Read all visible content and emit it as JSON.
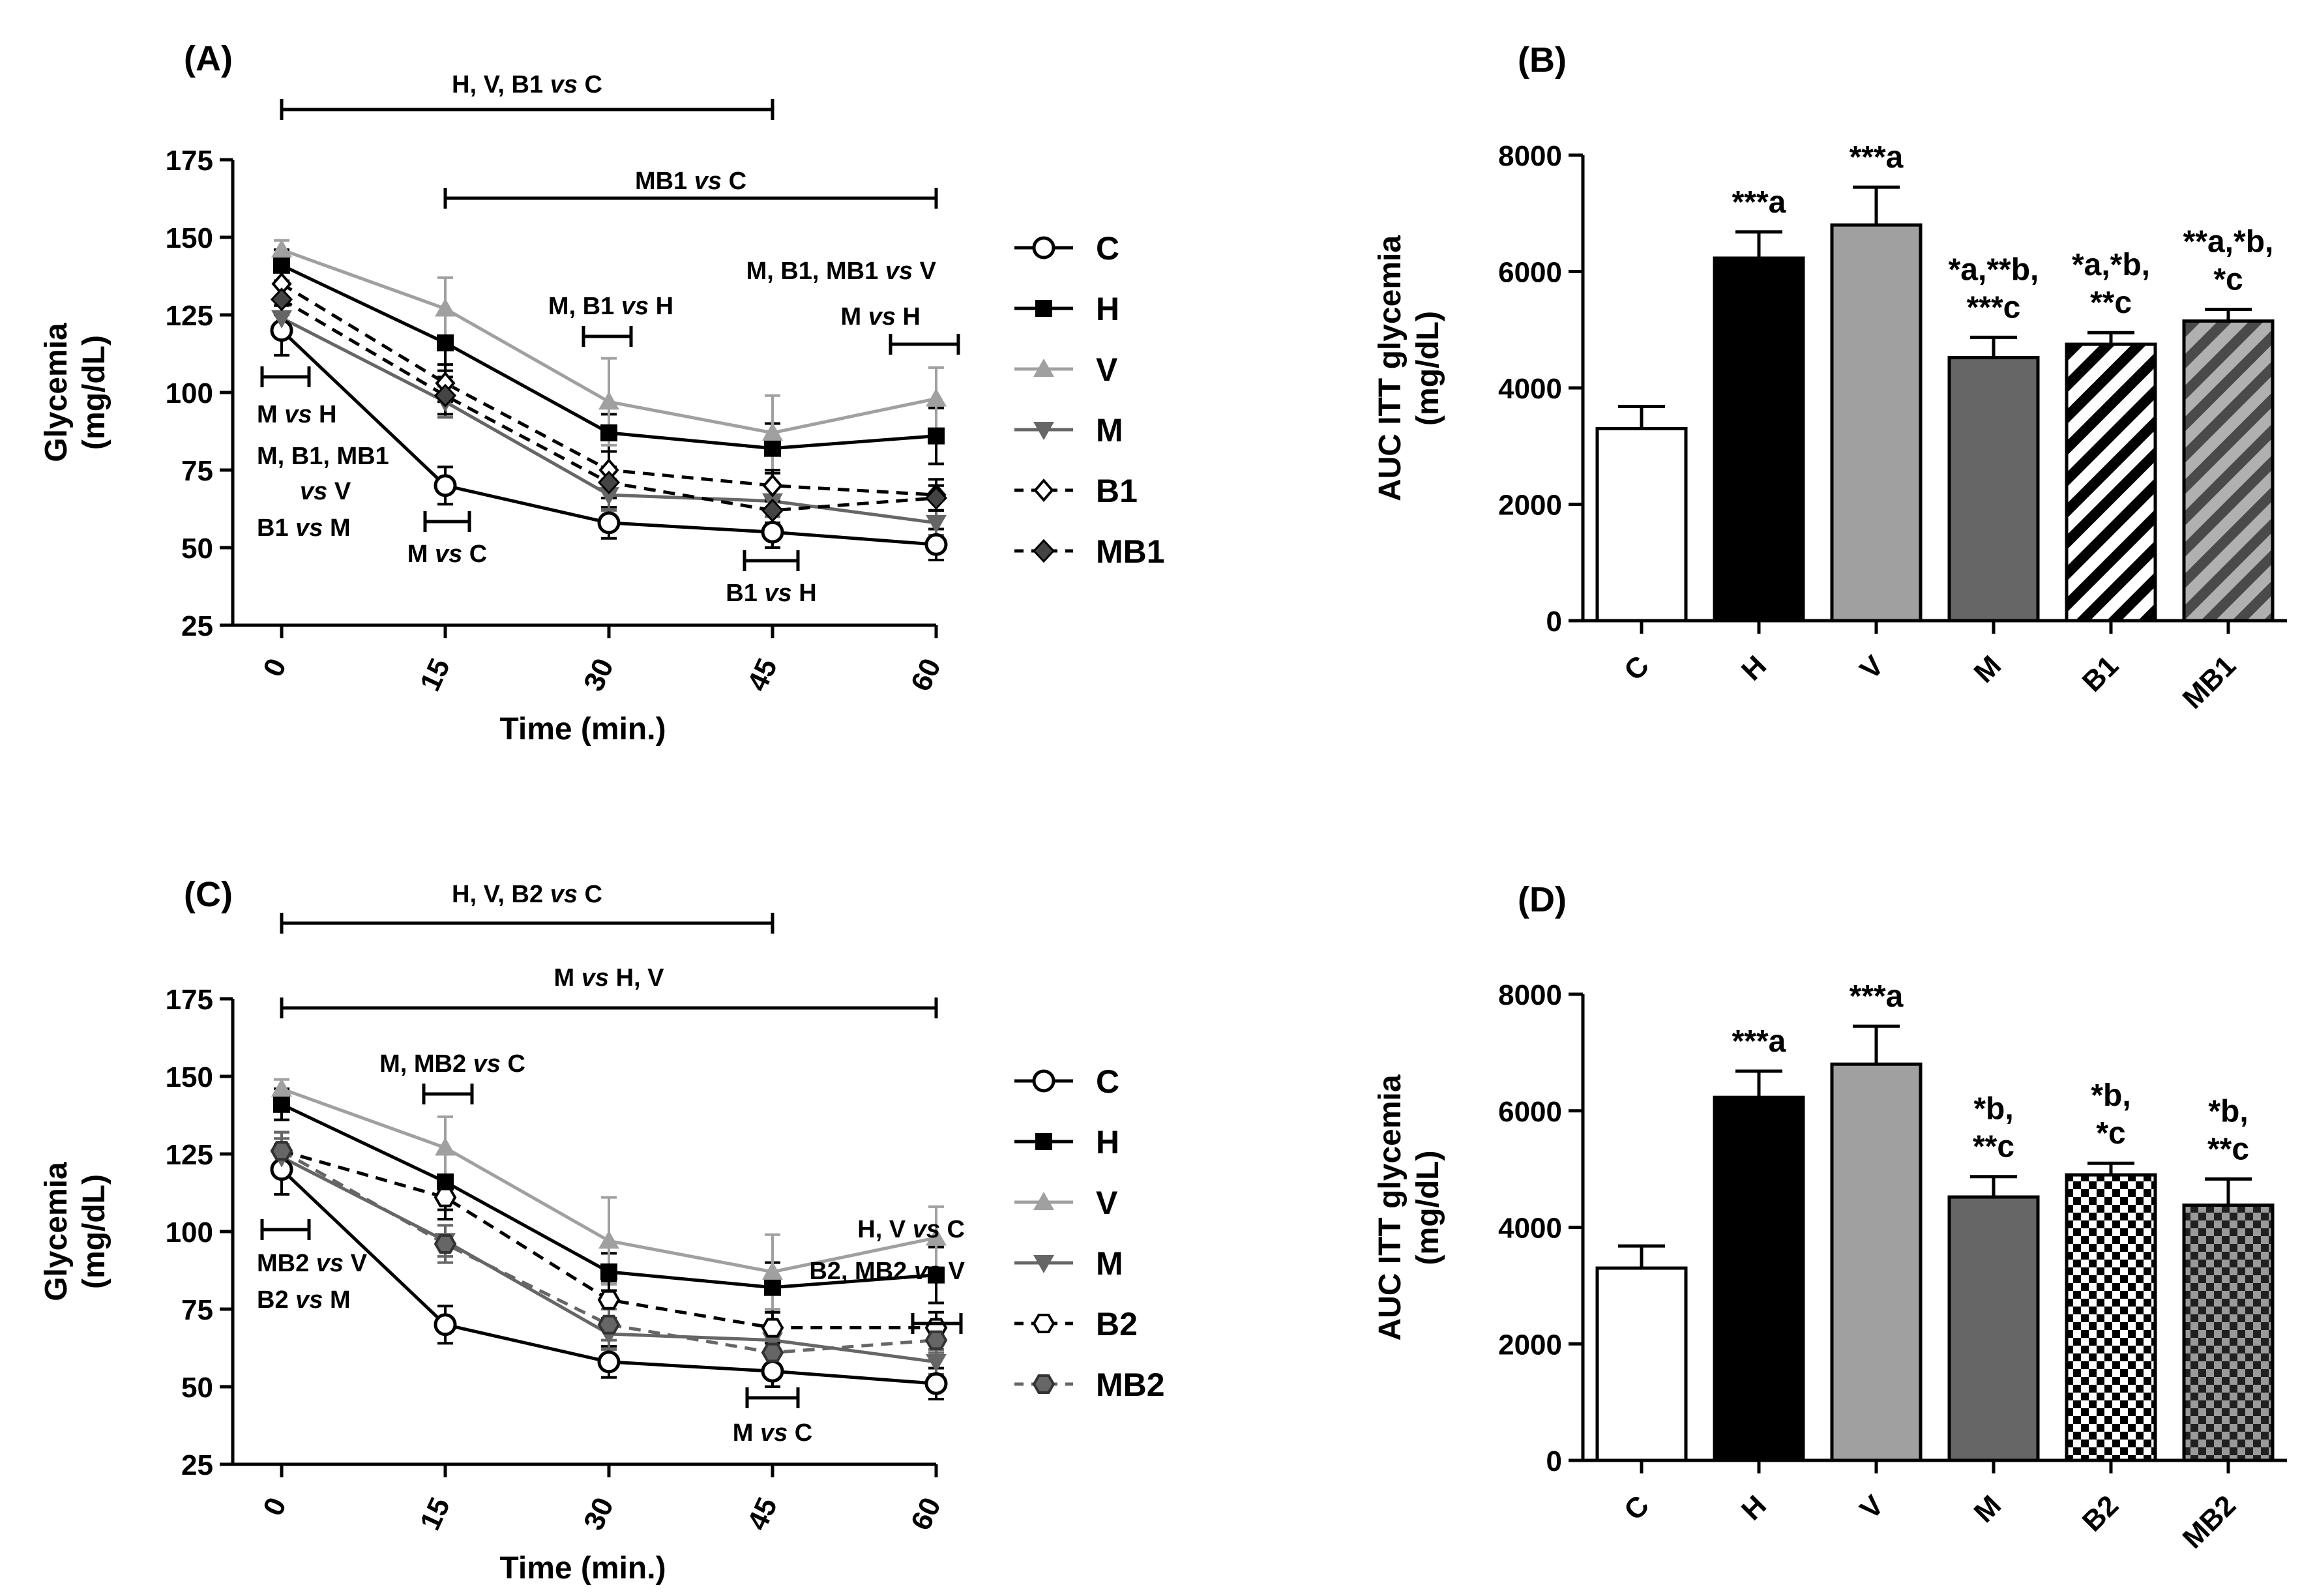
{
  "chart_data": [
    {
      "panel": "(A)",
      "type": "line",
      "title": "(A)",
      "xlabel": "Time (min.)",
      "ylabel": "Glycemia\n(mg/dL)",
      "x": [
        0,
        15,
        30,
        45,
        60
      ],
      "xticks": [
        "0",
        "15",
        "30",
        "45",
        "60"
      ],
      "ylim": [
        25,
        175
      ],
      "yticks": [
        25,
        50,
        75,
        100,
        125,
        150,
        175
      ],
      "series": [
        {
          "name": "C",
          "color": "#000000",
          "line": "solid",
          "marker": "circle-open",
          "values": [
            120,
            70,
            58,
            55,
            51
          ],
          "errors": [
            8,
            6,
            5,
            5,
            5
          ]
        },
        {
          "name": "H",
          "color": "#000000",
          "line": "solid",
          "marker": "square",
          "values": [
            141,
            116,
            87,
            82,
            86
          ],
          "errors": [
            5,
            9,
            6,
            8,
            9
          ]
        },
        {
          "name": "V",
          "color": "#a0a0a0",
          "line": "solid",
          "marker": "triangle-up",
          "values": [
            146,
            127,
            97,
            87,
            98
          ],
          "errors": [
            3,
            10,
            14,
            12,
            10
          ]
        },
        {
          "name": "M",
          "color": "#666666",
          "line": "solid",
          "marker": "triangle-down",
          "values": [
            124,
            97,
            67,
            65,
            58
          ],
          "errors": [
            6,
            5,
            5,
            5,
            4
          ]
        },
        {
          "name": "B1",
          "color": "#000000",
          "line": "dashed",
          "marker": "diamond-open",
          "values": [
            135,
            103,
            75,
            70,
            67
          ],
          "errors": [
            5,
            6,
            6,
            5,
            5
          ]
        },
        {
          "name": "MB1",
          "color": "#000000",
          "line": "dashed",
          "marker": "diamond",
          "values": [
            130,
            99,
            71,
            62,
            66
          ],
          "errors": [
            5,
            6,
            5,
            4,
            4
          ]
        }
      ],
      "annotations": [
        {
          "text": "H, V, B1 vs C",
          "italic": "vs",
          "type": "bracket",
          "x_from": 0,
          "x_to": 45
        },
        {
          "text": "MB1 vs C",
          "italic": "vs",
          "type": "bracket",
          "x_from": 15,
          "x_to": 60
        },
        {
          "text": "M, B1, MB1 vs V",
          "italic": "vs",
          "type": "label"
        },
        {
          "text": "M vs H",
          "italic": "vs",
          "type": "label",
          "at": 60
        },
        {
          "text": "M, B1 vs H",
          "italic": "vs",
          "type": "label",
          "at": 30
        },
        {
          "text": "M vs H",
          "italic": "vs",
          "type": "label",
          "at": 0
        },
        {
          "text": "M, B1, MB1",
          "type": "label",
          "at": 0
        },
        {
          "text": "vs V",
          "italic": "vs",
          "type": "label",
          "at": 0
        },
        {
          "text": "B1 vs M",
          "italic": "vs",
          "type": "label",
          "at": 0
        },
        {
          "text": "M vs C",
          "italic": "vs",
          "type": "label",
          "at": 15
        },
        {
          "text": "B1 vs H",
          "italic": "vs",
          "type": "label",
          "at": 45
        }
      ]
    },
    {
      "panel": "(B)",
      "type": "bar",
      "title": "(B)",
      "ylabel": "AUC ITT glycemia\n(mg/dL)",
      "ylim": [
        0,
        8000
      ],
      "yticks": [
        0,
        2000,
        4000,
        6000,
        8000
      ],
      "categories": [
        "C",
        "H",
        "V",
        "M",
        "B1",
        "MB1"
      ],
      "values": [
        3300,
        6230,
        6800,
        4520,
        4750,
        5150
      ],
      "errors": [
        380,
        450,
        650,
        350,
        200,
        200
      ],
      "fills": [
        "white",
        "black",
        "gray-light",
        "gray-dark",
        "diagonal-white",
        "diagonal-gray"
      ],
      "labels": [
        [],
        [
          "***a"
        ],
        [
          "***a"
        ],
        [
          "*a,**b,",
          "***c"
        ],
        [
          "*a,*b,",
          "**c"
        ],
        [
          "**a,*b,",
          "*c"
        ]
      ]
    },
    {
      "panel": "(C)",
      "type": "line",
      "title": "(C)",
      "xlabel": "Time (min.)",
      "ylabel": "Glycemia\n(mg/dL)",
      "x": [
        0,
        15,
        30,
        45,
        60
      ],
      "xticks": [
        "0",
        "15",
        "30",
        "45",
        "60"
      ],
      "ylim": [
        25,
        175
      ],
      "yticks": [
        25,
        50,
        75,
        100,
        125,
        150,
        175
      ],
      "series": [
        {
          "name": "C",
          "color": "#000000",
          "line": "solid",
          "marker": "circle-open",
          "values": [
            120,
            70,
            58,
            55,
            51
          ],
          "errors": [
            8,
            6,
            5,
            5,
            5
          ]
        },
        {
          "name": "H",
          "color": "#000000",
          "line": "solid",
          "marker": "square",
          "values": [
            141,
            116,
            87,
            82,
            86
          ],
          "errors": [
            5,
            9,
            6,
            8,
            9
          ]
        },
        {
          "name": "V",
          "color": "#a0a0a0",
          "line": "solid",
          "marker": "triangle-up",
          "values": [
            146,
            127,
            97,
            87,
            98
          ],
          "errors": [
            3,
            10,
            14,
            12,
            10
          ]
        },
        {
          "name": "M",
          "color": "#666666",
          "line": "solid",
          "marker": "triangle-down",
          "values": [
            124,
            97,
            67,
            65,
            58
          ],
          "errors": [
            6,
            5,
            5,
            5,
            4
          ]
        },
        {
          "name": "B2",
          "color": "#000000",
          "line": "dashed",
          "marker": "hexagon-open",
          "values": [
            126,
            111,
            78,
            69,
            69
          ],
          "errors": [
            6,
            7,
            6,
            5,
            5
          ]
        },
        {
          "name": "MB2",
          "color": "#666666",
          "line": "dashed",
          "marker": "hexagon",
          "values": [
            126,
            96,
            70,
            61,
            65
          ],
          "errors": [
            6,
            6,
            5,
            4,
            4
          ]
        }
      ],
      "annotations": [
        {
          "text": "H, V, B2 vs C",
          "italic": "vs",
          "type": "bracket",
          "x_from": 0,
          "x_to": 45
        },
        {
          "text": "M vs H, V",
          "italic": "vs",
          "type": "bracket",
          "x_from": 0,
          "x_to": 60
        },
        {
          "text": "M, MB2 vs C",
          "italic": "vs",
          "type": "label",
          "at": 15
        },
        {
          "text": "H, V vs C",
          "italic": "vs",
          "type": "label",
          "at": 60
        },
        {
          "text": "B2, MB2 vs V",
          "italic": "vs",
          "type": "label",
          "at": 60
        },
        {
          "text": "MB2 vs V",
          "italic": "vs",
          "type": "label",
          "at": 0
        },
        {
          "text": "B2 vs M",
          "italic": "vs",
          "type": "label",
          "at": 0
        },
        {
          "text": "M vs C",
          "italic": "vs",
          "type": "label",
          "at": 45
        }
      ]
    },
    {
      "panel": "(D)",
      "type": "bar",
      "title": "(D)",
      "ylabel": "AUC ITT glycemia\n(mg/dL)",
      "ylim": [
        0,
        8000
      ],
      "yticks": [
        0,
        2000,
        4000,
        6000,
        8000
      ],
      "categories": [
        "C",
        "H",
        "V",
        "M",
        "B2",
        "MB2"
      ],
      "values": [
        3300,
        6230,
        6800,
        4520,
        4900,
        4380
      ],
      "errors": [
        380,
        450,
        650,
        350,
        200,
        450
      ],
      "fills": [
        "white",
        "black",
        "gray-light",
        "gray-dark",
        "checker-white",
        "checker-gray"
      ],
      "labels": [
        [],
        [
          "***a"
        ],
        [
          "***a"
        ],
        [
          "*b,",
          "**c"
        ],
        [
          "*b,",
          "*c"
        ],
        [
          "*b,",
          "**c"
        ]
      ]
    }
  ]
}
